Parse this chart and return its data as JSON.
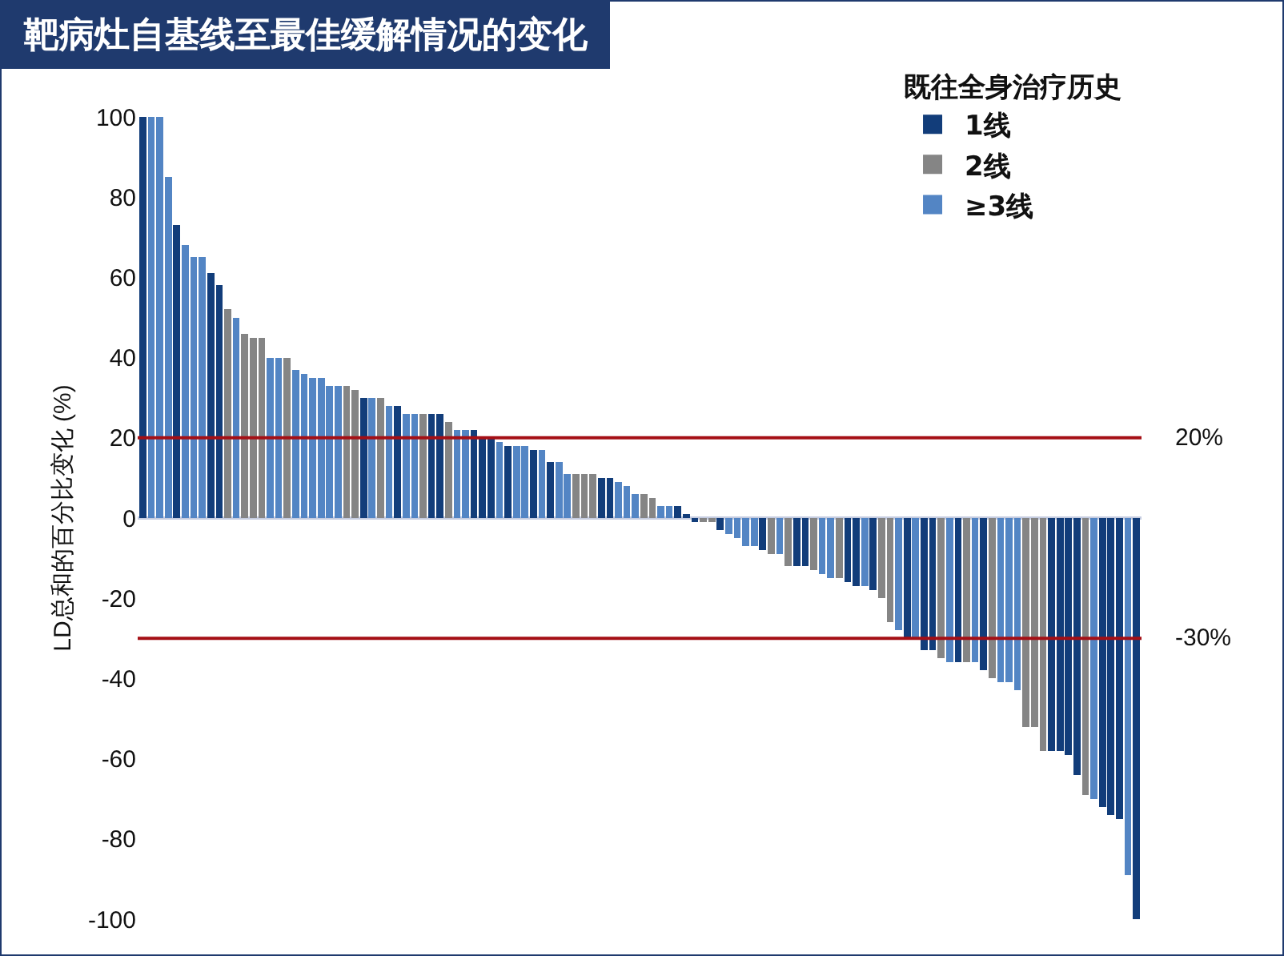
{
  "chart_data": {
    "type": "bar",
    "title": "靶病灶自基线至最佳缓解情况的变化",
    "ylabel": "LD总和的百分比变化 (%)",
    "legend_title": "既往全身治疗历史",
    "legend": "top right",
    "grid": false,
    "stacked": true,
    "ylim": [
      -100,
      100
    ],
    "yticks": [
      -100,
      -80,
      -60,
      -40,
      -20,
      0,
      20,
      40,
      60,
      80,
      100
    ],
    "categories": [
      null,
      null,
      null,
      null,
      null,
      null,
      null,
      null,
      null,
      null,
      null,
      null,
      null,
      null,
      null,
      null,
      null,
      null,
      null,
      null,
      null,
      null,
      null,
      null,
      null,
      null,
      null,
      null,
      null,
      null,
      null,
      null,
      null,
      null,
      null,
      null,
      null,
      null,
      null,
      null,
      null,
      null,
      null,
      null,
      null,
      null,
      null,
      null,
      null,
      null,
      null,
      null,
      null,
      null,
      null,
      null,
      null,
      null,
      null,
      null,
      null,
      null,
      null,
      null,
      null,
      null,
      null,
      null,
      null,
      null,
      null,
      null,
      null,
      null,
      null,
      null,
      null,
      null,
      null,
      null,
      null,
      null,
      null,
      null,
      null,
      null,
      null,
      null,
      null,
      null,
      null,
      null,
      null,
      null,
      null,
      null,
      null,
      null,
      null,
      null,
      null,
      null,
      null,
      null,
      null,
      null,
      null,
      null,
      null,
      null,
      null,
      null,
      null,
      null,
      null,
      null,
      null,
      null
    ],
    "series": [
      {
        "name": "1线",
        "color": "#123d7a",
        "values": [
          100,
          null,
          null,
          null,
          73,
          null,
          null,
          null,
          61,
          58,
          null,
          null,
          null,
          null,
          null,
          null,
          null,
          null,
          null,
          null,
          null,
          null,
          null,
          null,
          null,
          null,
          30,
          null,
          null,
          null,
          28,
          null,
          null,
          null,
          26,
          26,
          null,
          null,
          null,
          22,
          20,
          20,
          null,
          18,
          null,
          null,
          17,
          null,
          14,
          null,
          null,
          null,
          null,
          null,
          10,
          10,
          null,
          null,
          null,
          null,
          null,
          null,
          null,
          3,
          1,
          -1,
          null,
          null,
          -3,
          null,
          null,
          null,
          null,
          -8,
          null,
          null,
          null,
          -12,
          -12,
          null,
          null,
          null,
          null,
          -16,
          -17,
          null,
          -18,
          null,
          null,
          null,
          -30,
          null,
          -33,
          -33,
          null,
          null,
          -36,
          null,
          null,
          -38,
          null,
          null,
          null,
          null,
          null,
          null,
          null,
          -58,
          -58,
          -59,
          -64,
          null,
          null,
          -72,
          -74,
          -75,
          null,
          -100
        ]
      },
      {
        "name": "2线",
        "color": "#858585",
        "values": [
          null,
          null,
          null,
          null,
          null,
          null,
          null,
          null,
          null,
          null,
          52,
          null,
          46,
          45,
          45,
          null,
          null,
          40,
          null,
          null,
          null,
          null,
          null,
          null,
          33,
          32,
          null,
          null,
          30,
          null,
          null,
          null,
          null,
          26,
          null,
          null,
          24,
          null,
          null,
          null,
          null,
          null,
          null,
          null,
          null,
          null,
          null,
          null,
          null,
          null,
          null,
          11,
          11,
          11,
          null,
          null,
          null,
          null,
          null,
          6,
          5,
          null,
          null,
          null,
          null,
          null,
          -1,
          -1,
          null,
          null,
          null,
          null,
          null,
          null,
          -9,
          null,
          -12,
          null,
          null,
          -13,
          null,
          null,
          -15,
          null,
          null,
          null,
          null,
          -20,
          -26,
          null,
          null,
          null,
          null,
          null,
          -35,
          null,
          null,
          -36,
          null,
          null,
          -40,
          null,
          null,
          null,
          -52,
          -52,
          -58,
          null,
          null,
          null,
          null,
          -69,
          null,
          null,
          null,
          null,
          null,
          null
        ]
      },
      {
        "name": "≥3线",
        "color": "#5385c4",
        "values": [
          null,
          100,
          100,
          85,
          null,
          68,
          65,
          65,
          null,
          null,
          null,
          50,
          null,
          null,
          null,
          40,
          40,
          null,
          37,
          36,
          35,
          35,
          33,
          33,
          null,
          null,
          null,
          30,
          null,
          28,
          null,
          26,
          26,
          null,
          null,
          null,
          null,
          22,
          22,
          null,
          null,
          null,
          19,
          null,
          18,
          18,
          null,
          17,
          null,
          14,
          11,
          null,
          null,
          null,
          null,
          null,
          9,
          8,
          6,
          null,
          null,
          3,
          3,
          null,
          null,
          null,
          null,
          null,
          null,
          -4,
          -5,
          -7,
          -7,
          null,
          null,
          -9,
          null,
          null,
          null,
          null,
          -14,
          -15,
          null,
          null,
          null,
          -17,
          null,
          null,
          null,
          -28,
          null,
          -30,
          null,
          null,
          null,
          -36,
          null,
          null,
          -36,
          null,
          null,
          -41,
          -41,
          -43,
          null,
          null,
          null,
          null,
          null,
          null,
          null,
          null,
          -70,
          null,
          null,
          null,
          -89,
          null
        ]
      }
    ],
    "ref_lines": [
      {
        "axis": "y",
        "value": 20,
        "label": "20%",
        "color": "#a50f15"
      },
      {
        "axis": "y",
        "value": -30,
        "label": "-30%",
        "color": "#a50f15"
      }
    ]
  }
}
